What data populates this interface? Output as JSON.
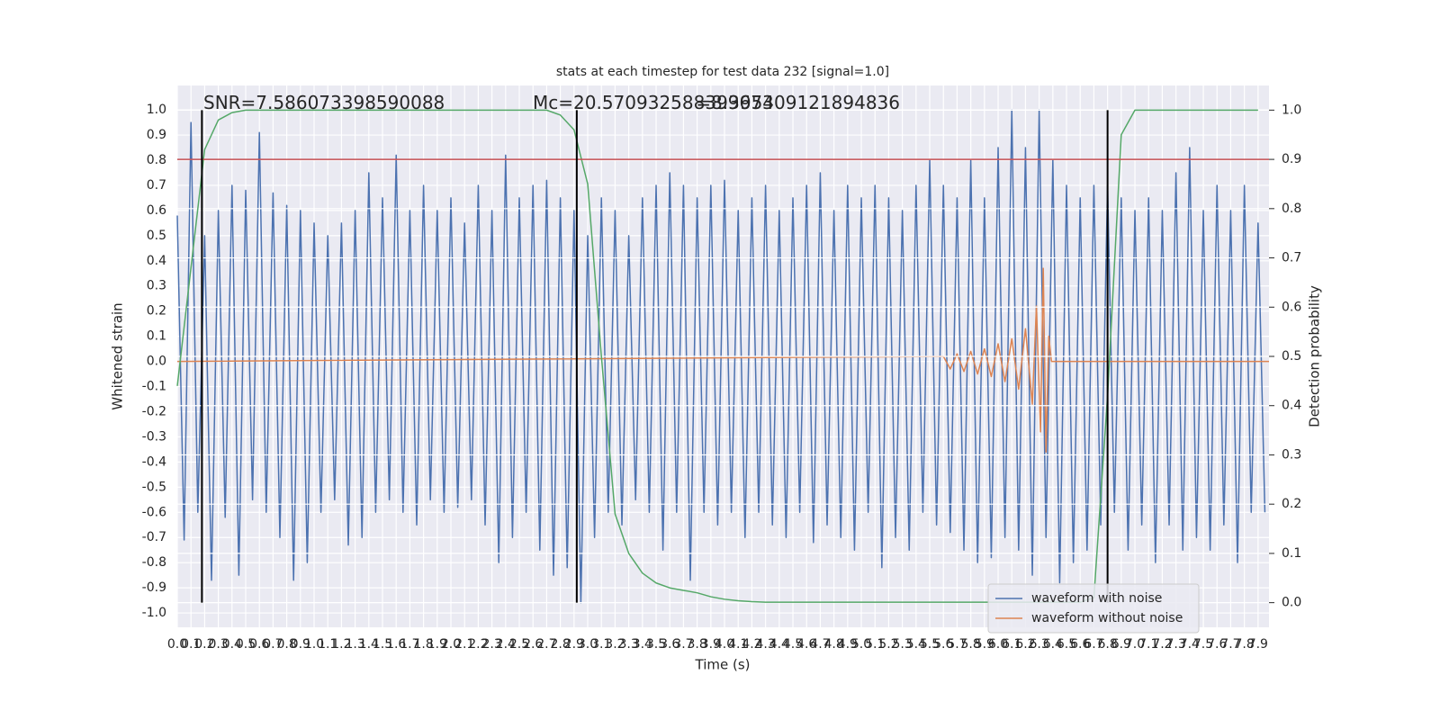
{
  "chart_data": {
    "type": "line",
    "title": "stats at each timestep for test data 232 [signal=1.0]",
    "xlabel": "Time (s)",
    "ylabel": "Whitened strain",
    "y2label": "Detection probability",
    "annotations": [
      "SNR=7.586073398590088",
      "Mc=20.570932588399673",
      "=8.395409121894836"
    ],
    "xlim": [
      0,
      7.98
    ],
    "ylim": [
      -1.057,
      1.097
    ],
    "y2lim": [
      -0.05,
      1.05
    ],
    "xticks": [
      {
        "value": 0,
        "label": "0.0"
      },
      0.1,
      0.2,
      0.3,
      0.4,
      0.5,
      0.6,
      0.7,
      0.8,
      0.9,
      {
        "value": 1,
        "label": "1.0"
      },
      1.1,
      1.2,
      1.3,
      1.4,
      1.5,
      1.6,
      1.7,
      1.8,
      1.9,
      {
        "value": 2,
        "label": "2.0"
      },
      2.1,
      2.2,
      2.3,
      2.4,
      2.5,
      2.6,
      2.7,
      2.8,
      2.9,
      {
        "value": 3,
        "label": "3.0"
      },
      3.1,
      3.2,
      3.3,
      3.4,
      3.5,
      3.6,
      3.7,
      3.8,
      3.9,
      {
        "value": 4,
        "label": "4.0"
      },
      4.1,
      4.2,
      4.3,
      4.4,
      4.5,
      4.6,
      4.7,
      4.8,
      4.9,
      {
        "value": 5,
        "label": "5.0"
      },
      5.1,
      5.2,
      5.3,
      5.4,
      5.5,
      5.6,
      5.7,
      5.8,
      5.9,
      {
        "value": 6,
        "label": "6.0"
      },
      6.1,
      6.2,
      6.3,
      6.4,
      6.5,
      6.6,
      6.7,
      6.8,
      6.9,
      {
        "value": 7,
        "label": "7.0"
      },
      7.1,
      7.2,
      7.3,
      7.4,
      7.5,
      7.6,
      7.7,
      7.8,
      7.9
    ],
    "yticks": [
      {
        "value": -1,
        "label": "-1.0"
      },
      -0.9,
      -0.8,
      -0.7,
      -0.6,
      -0.5,
      -0.4,
      -0.3,
      -0.2,
      -0.1,
      {
        "value": 0,
        "label": "0.0"
      },
      0.1,
      0.2,
      0.3,
      0.4,
      0.5,
      0.6,
      0.7,
      0.8,
      0.9,
      {
        "value": 1,
        "label": "1.0"
      }
    ],
    "y2ticks": [
      {
        "value": 0,
        "label": "0.0"
      },
      0.1,
      0.2,
      0.3,
      0.4,
      0.5,
      0.6,
      0.7,
      0.8,
      0.9,
      {
        "value": 1,
        "label": "1.0"
      }
    ],
    "grid": true,
    "legend": "lower right",
    "series": [
      {
        "name": "waveform with noise",
        "color": "#4c72b0",
        "x": [
          0,
          0.05,
          0.1,
          0.15,
          0.2,
          0.25,
          0.3,
          0.35,
          0.4,
          0.45,
          0.5,
          0.55,
          0.6,
          0.65,
          0.7,
          0.75,
          0.8,
          0.85,
          0.9,
          0.95,
          1,
          1.05,
          1.1,
          1.15,
          1.2,
          1.25,
          1.3,
          1.35,
          1.4,
          1.45,
          1.5,
          1.55,
          1.6,
          1.65,
          1.7,
          1.75,
          1.8,
          1.85,
          1.9,
          1.95,
          2,
          2.05,
          2.1,
          2.15,
          2.2,
          2.25,
          2.3,
          2.35,
          2.4,
          2.45,
          2.5,
          2.55,
          2.6,
          2.65,
          2.7,
          2.75,
          2.8,
          2.85,
          2.9,
          2.95,
          3,
          3.05,
          3.1,
          3.15,
          3.2,
          3.25,
          3.3,
          3.35,
          3.4,
          3.45,
          3.5,
          3.55,
          3.6,
          3.65,
          3.7,
          3.75,
          3.8,
          3.85,
          3.9,
          3.95,
          4,
          4.05,
          4.1,
          4.15,
          4.2,
          4.25,
          4.3,
          4.35,
          4.4,
          4.45,
          4.5,
          4.55,
          4.6,
          4.65,
          4.7,
          4.75,
          4.8,
          4.85,
          4.9,
          4.95,
          5,
          5.05,
          5.1,
          5.15,
          5.2,
          5.25,
          5.3,
          5.35,
          5.4,
          5.45,
          5.5,
          5.55,
          5.6,
          5.65,
          5.7,
          5.75,
          5.8,
          5.85,
          5.9,
          5.95,
          6,
          6.05,
          6.1,
          6.15,
          6.2,
          6.25,
          6.3,
          6.35,
          6.4,
          6.45,
          6.5,
          6.55,
          6.6,
          6.65,
          6.7,
          6.75,
          6.8,
          6.85,
          6.9,
          6.95,
          7,
          7.05,
          7.1,
          7.15,
          7.2,
          7.25,
          7.3,
          7.35,
          7.4,
          7.45,
          7.5,
          7.55,
          7.6,
          7.65,
          7.7,
          7.75,
          7.8,
          7.85,
          7.9,
          7.95
        ],
        "values": [
          0.58,
          -0.71,
          0.95,
          -0.6,
          0.5,
          -0.87,
          0.6,
          -0.62,
          0.7,
          -0.85,
          0.68,
          -0.55,
          0.91,
          -0.6,
          0.67,
          -0.7,
          0.62,
          -0.87,
          0.6,
          -0.8,
          0.55,
          -0.6,
          0.5,
          -0.55,
          0.55,
          -0.73,
          0.6,
          -0.7,
          0.75,
          -0.6,
          0.65,
          -0.55,
          0.82,
          -0.6,
          0.6,
          -0.65,
          0.7,
          -0.55,
          0.6,
          -0.6,
          0.65,
          -0.58,
          0.55,
          -0.55,
          0.7,
          -0.65,
          0.6,
          -0.8,
          0.82,
          -0.7,
          0.65,
          -0.6,
          0.7,
          -0.75,
          0.72,
          -0.85,
          0.65,
          -0.82,
          0.6,
          -0.96,
          0.5,
          -0.7,
          0.65,
          -0.6,
          0.6,
          -0.65,
          0.5,
          -0.55,
          0.65,
          -0.6,
          0.7,
          -0.75,
          0.75,
          -0.6,
          0.7,
          -0.87,
          0.65,
          -0.6,
          0.7,
          -0.65,
          0.72,
          -0.6,
          0.6,
          -0.7,
          0.65,
          -0.6,
          0.7,
          -0.65,
          0.6,
          -0.7,
          0.65,
          -0.6,
          0.7,
          -0.72,
          0.75,
          -0.65,
          0.6,
          -0.7,
          0.7,
          -0.75,
          0.65,
          -0.6,
          0.7,
          -0.82,
          0.65,
          -0.7,
          0.6,
          -0.75,
          0.7,
          -0.6,
          0.8,
          -0.65,
          0.7,
          -0.68,
          0.65,
          -0.75,
          0.8,
          -0.8,
          0.65,
          -0.78,
          0.85,
          -0.7,
          1.0,
          -0.75,
          0.85,
          -0.85,
          1.0,
          -0.7,
          0.8,
          -0.88,
          0.7,
          -0.8,
          0.65,
          -0.75,
          0.7,
          -0.65,
          0.7,
          -0.6,
          0.65,
          -0.75,
          0.6,
          -0.65,
          0.65,
          -0.8,
          0.6,
          -0.65,
          0.75,
          -0.75,
          0.85,
          -0.7,
          0.6,
          -0.75,
          0.7,
          -0.65,
          0.6,
          -0.8,
          0.7,
          -0.6,
          0.55,
          -0.6
        ]
      },
      {
        "name": "waveform without noise",
        "color": "#dd8452",
        "x": [
          0,
          5.6,
          5.65,
          5.7,
          5.75,
          5.8,
          5.85,
          5.9,
          5.95,
          6,
          6.05,
          6.1,
          6.15,
          6.2,
          6.25,
          6.28,
          6.31,
          6.33,
          6.35,
          6.37,
          6.39,
          7.98
        ],
        "values": [
          0,
          0.02,
          -0.03,
          0.03,
          -0.04,
          0.04,
          -0.05,
          0.05,
          -0.06,
          0.07,
          -0.08,
          0.09,
          -0.11,
          0.13,
          -0.17,
          0.22,
          -0.28,
          0.37,
          -0.36,
          0.1,
          0,
          0
        ]
      },
      {
        "color": "#55a868",
        "axis": "y2",
        "x": [
          0,
          0.1,
          0.2,
          0.3,
          0.4,
          0.5,
          0.6,
          0.7,
          0.8,
          0.9,
          1,
          1.1,
          1.2,
          1.3,
          1.4,
          1.5,
          1.6,
          1.7,
          1.8,
          1.9,
          2,
          2.1,
          2.2,
          2.3,
          2.4,
          2.5,
          2.6,
          2.7,
          2.8,
          2.9,
          3,
          3.1,
          3.2,
          3.3,
          3.4,
          3.5,
          3.6,
          3.7,
          3.8,
          3.9,
          4,
          4.1,
          4.2,
          4.3,
          4.4,
          4.5,
          4.6,
          4.7,
          4.8,
          4.9,
          5,
          5.1,
          5.2,
          5.3,
          5.4,
          5.5,
          5.6,
          5.7,
          5.8,
          5.9,
          6,
          6.1,
          6.2,
          6.3,
          6.4,
          6.5,
          6.6,
          6.7,
          6.8,
          6.9,
          7,
          7.1,
          7.2,
          7.3,
          7.4,
          7.5,
          7.6,
          7.7,
          7.8,
          7.9
        ],
        "values": [
          0.44,
          0.68,
          0.92,
          0.98,
          0.995,
          1,
          1,
          1,
          1,
          1,
          1,
          1,
          1,
          1,
          1,
          1,
          1,
          1,
          1,
          1,
          1,
          1,
          1,
          1,
          1,
          1,
          1,
          1,
          0.99,
          0.96,
          0.85,
          0.5,
          0.18,
          0.1,
          0.06,
          0.04,
          0.03,
          0.025,
          0.02,
          0.012,
          0.007,
          0.004,
          0.002,
          0.001,
          0.001,
          0.001,
          0.001,
          0.001,
          0.001,
          0.001,
          0.001,
          0.001,
          0.001,
          0.001,
          0.001,
          0.001,
          0.001,
          0.001,
          0.001,
          0.001,
          0.001,
          0.001,
          0.001,
          0.001,
          0.001,
          0.001,
          0.001,
          0.01,
          0.42,
          0.95,
          1,
          1,
          1,
          1,
          1,
          1,
          1,
          1,
          1,
          1
        ]
      }
    ],
    "hline": {
      "y": 0.9,
      "axis": "y2",
      "color": "#c44e52"
    },
    "vlines": {
      "x": [
        0.18,
        2.92,
        6.8
      ],
      "ymin": 0,
      "ymax": 1,
      "axis": "y2",
      "color": "#000000"
    }
  }
}
